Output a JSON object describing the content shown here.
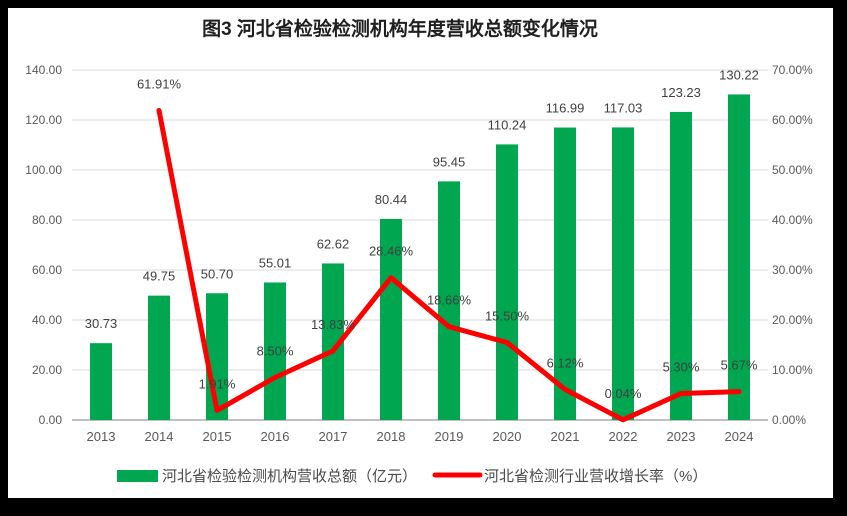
{
  "chart_data": {
    "type": "combo",
    "title": "图3 河北省检验检测机构年度营收总额变化情况",
    "categories": [
      "2013",
      "2014",
      "2015",
      "2016",
      "2017",
      "2018",
      "2019",
      "2020",
      "2021",
      "2022",
      "2023",
      "2024"
    ],
    "series": [
      {
        "name": "河北省检验检测机构营收总额（亿元）",
        "type": "bar",
        "axis": "left",
        "color": "#00A750",
        "values": [
          30.73,
          49.75,
          50.7,
          55.01,
          62.62,
          80.44,
          95.45,
          110.24,
          116.99,
          117.03,
          123.23,
          130.22
        ],
        "labels": [
          "30.73",
          "49.75",
          "50.70",
          "55.01",
          "62.62",
          "80.44",
          "95.45",
          "110.24",
          "116.99",
          "117.03",
          "123.23",
          "130.22"
        ]
      },
      {
        "name": "河北省检测行业营收增长率（%）",
        "type": "line",
        "axis": "right",
        "color": "#FF0000",
        "values": [
          null,
          61.91,
          1.91,
          8.5,
          13.83,
          28.46,
          18.66,
          15.5,
          6.12,
          0.04,
          5.3,
          5.67
        ],
        "labels": [
          null,
          "61.91%",
          "1.91%",
          "8.50%",
          "13.83%",
          "28.46%",
          "18.66%",
          "15.50%",
          "6.12%",
          "0.04%",
          "5.30%",
          "5.67%"
        ]
      }
    ],
    "left_axis": {
      "min": 0,
      "max": 140,
      "step": 20,
      "ticks": [
        "0.00",
        "20.00",
        "40.00",
        "60.00",
        "80.00",
        "100.00",
        "120.00",
        "140.00"
      ]
    },
    "right_axis": {
      "min": 0,
      "max": 70,
      "step": 10,
      "ticks": [
        "0.00%",
        "10.00%",
        "20.00%",
        "30.00%",
        "40.00%",
        "50.00%",
        "60.00%",
        "70.00%"
      ]
    },
    "grid": true,
    "legend_position": "bottom",
    "style": {
      "gridline": "#D9D9D9",
      "axis_line": "#BFBFBF",
      "tick_text": "#595959",
      "data_label_text": "#3F3F3F",
      "background": "#FFFFFF",
      "frame": "#000000"
    }
  }
}
